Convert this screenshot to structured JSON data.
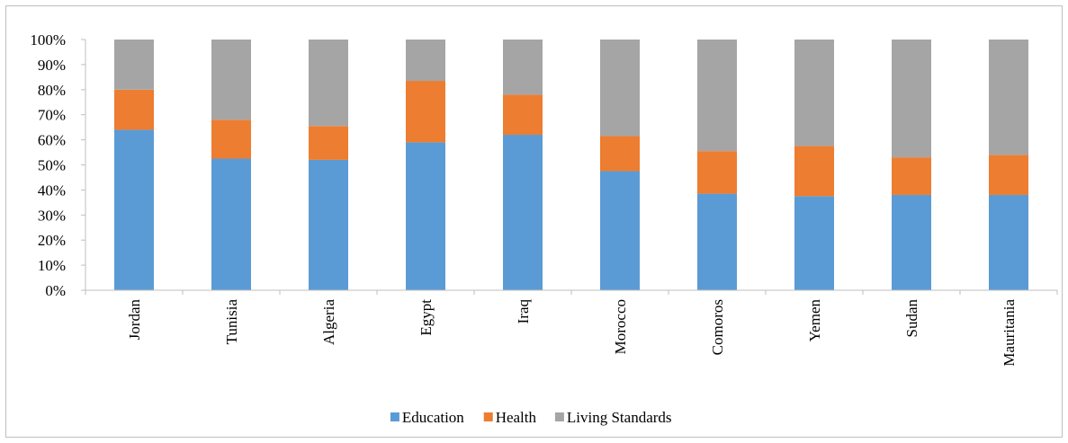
{
  "chart_data": {
    "type": "bar",
    "stacked": true,
    "categories": [
      "Jordan",
      "Tunisia",
      "Algeria",
      "Egypt",
      "Iraq",
      "Morocco",
      "Comoros",
      "Yemen",
      "Sudan",
      "Mauritania"
    ],
    "series": [
      {
        "name": "Education",
        "values": [
          64,
          52.5,
          52,
          59,
          62,
          47.5,
          38.5,
          37.5,
          38,
          38
        ],
        "color": "#5b9bd5"
      },
      {
        "name": "Health",
        "values": [
          16,
          15.5,
          13.5,
          24.5,
          16,
          14,
          17,
          20,
          15,
          16
        ],
        "color": "#ed7d31"
      },
      {
        "name": "Living Standards",
        "values": [
          20,
          32,
          34.5,
          16.5,
          22,
          38.5,
          44.5,
          42.5,
          47,
          46
        ],
        "color": "#a5a5a5"
      }
    ],
    "y_ticks": [
      "0%",
      "10%",
      "20%",
      "30%",
      "40%",
      "50%",
      "60%",
      "70%",
      "80%",
      "90%",
      "100%"
    ],
    "ylim": [
      0,
      100
    ],
    "y_unit": "percent",
    "grid": false,
    "legend_position": "bottom",
    "title": "",
    "xlabel": "",
    "ylabel": ""
  }
}
